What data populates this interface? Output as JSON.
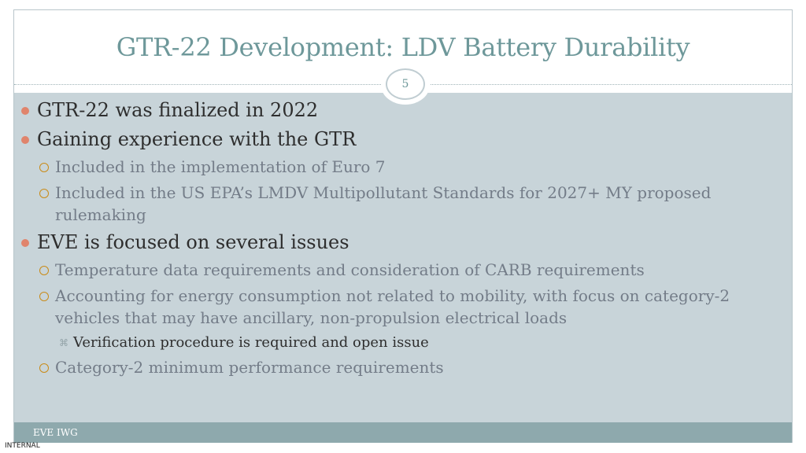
{
  "slide": {
    "title": "GTR-22 Development: LDV Battery Durability",
    "page_number": "5",
    "footer": "EVE IWG",
    "internal_label": "INTERNAL"
  },
  "bullets": [
    {
      "level": 1,
      "text": "GTR-22 was finalized in 2022"
    },
    {
      "level": 1,
      "text": "Gaining experience with the GTR"
    },
    {
      "level": 2,
      "text": "Included in the implementation of Euro 7"
    },
    {
      "level": 2,
      "text": "Included in the US EPA’s LMDV Multipollutant Standards for 2027+ MY proposed rulemaking"
    },
    {
      "level": 1,
      "text": "EVE is focused on several issues"
    },
    {
      "level": 2,
      "text": "Temperature data requirements and consideration of CARB requirements"
    },
    {
      "level": 2,
      "text": "Accounting for energy consumption not related to mobility, with focus on category-2 vehicles that may have ancillary, non-propulsion electrical loads"
    },
    {
      "level": 3,
      "text": "Verification procedure is required and open issue"
    },
    {
      "level": 2,
      "text": "Category-2 minimum performance requirements"
    }
  ],
  "icons": {
    "level1": "filled-circle-bullet-icon",
    "level2": "hollow-circle-bullet-icon",
    "level3": "cross-bullet-icon"
  },
  "colors": {
    "title": "#6e989a",
    "content_background": "#c8d4d9",
    "footer_background": "#8ea9ad",
    "bullet_level1": "#e0846c",
    "bullet_level2": "#c98b18"
  }
}
